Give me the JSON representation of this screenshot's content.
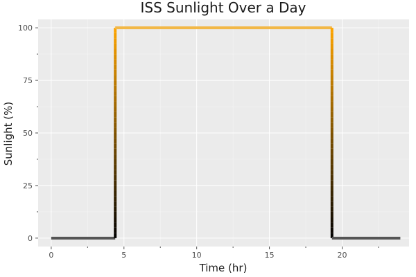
{
  "chart_data": {
    "type": "line",
    "title": "ISS Sunlight Over a Day",
    "xlabel": "Time (hr)",
    "ylabel": "Sunlight (%)",
    "xlim": [
      -0.9,
      24.6
    ],
    "ylim": [
      -4,
      104
    ],
    "xticks": [
      0,
      5,
      10,
      15,
      20
    ],
    "xtick_labels": [
      "0",
      "5",
      "10",
      "15",
      "20"
    ],
    "yticks": [
      0,
      25,
      50,
      75,
      100
    ],
    "ytick_labels": [
      "0",
      "25",
      "50",
      "75",
      "100"
    ],
    "grid": true,
    "legend": "none",
    "colors": {
      "panel_background": "#ebebeb",
      "grid_major": "#ffffff",
      "night": "#555555",
      "day": "#f2b847",
      "ramp_bottom": "#000000",
      "ramp_top": "#ffa500"
    },
    "series": [
      {
        "x": [
          0,
          4.4,
          4.4,
          19.3,
          19.3,
          24
        ],
        "y": [
          0,
          0,
          100,
          100,
          0,
          0
        ]
      }
    ]
  }
}
